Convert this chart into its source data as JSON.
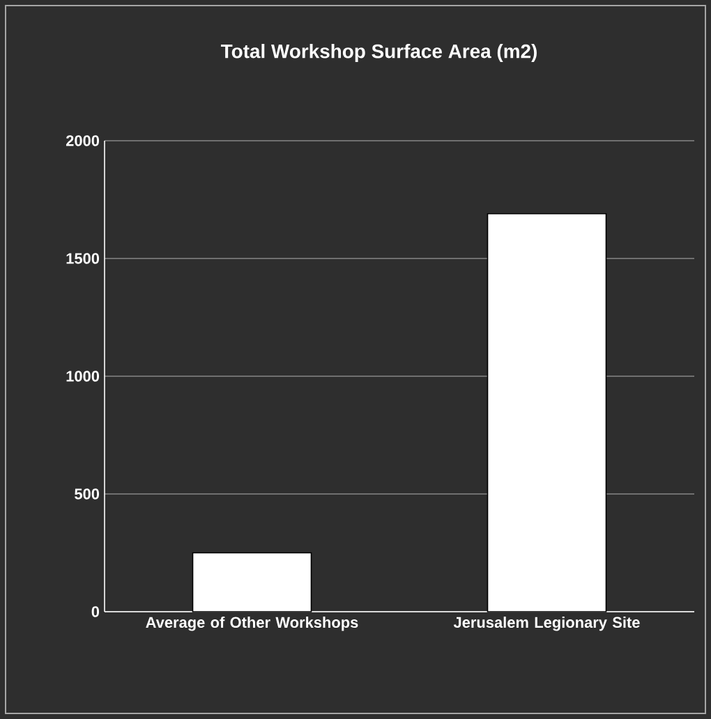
{
  "chart_data": {
    "type": "bar",
    "title": "Total Workshop Surface Area (m2)",
    "categories": [
      "Average of Other Workshops",
      "Jerusalem Legionary Site"
    ],
    "values": [
      250,
      1690
    ],
    "color": "#ffffff",
    "ylim": [
      0,
      2000
    ],
    "yticks": [
      0,
      500,
      1000,
      1500,
      2000
    ],
    "grid": "y"
  }
}
